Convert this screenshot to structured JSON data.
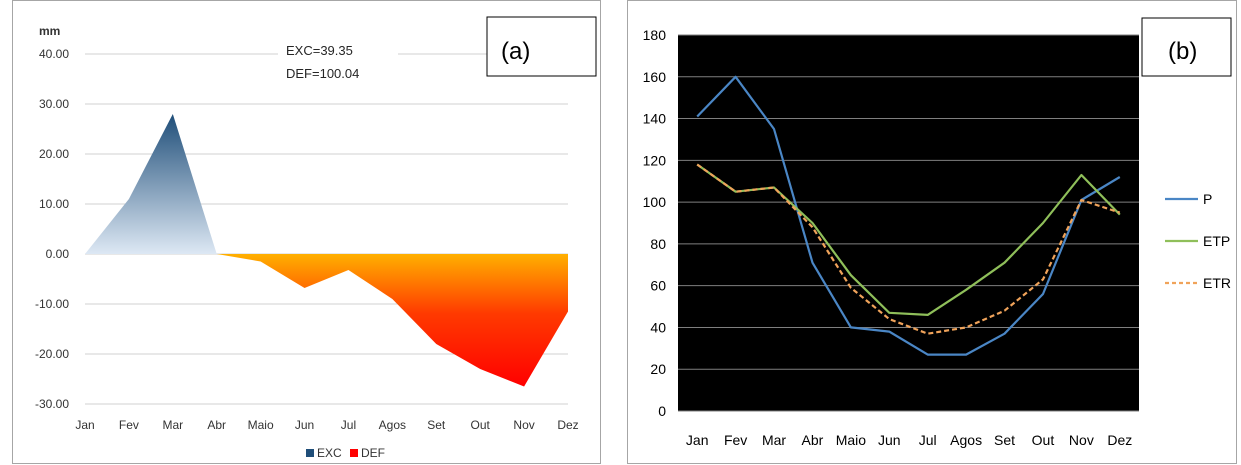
{
  "panel_labels": [
    "(a)",
    "(b)"
  ],
  "chart_data": [
    {
      "type": "area",
      "ylabel": "mm",
      "ylim": [
        -30,
        40
      ],
      "yticks": [
        "40.00",
        "30.00",
        "20.00",
        "10.00",
        "0.00",
        "-10.00",
        "-20.00",
        "-30.00"
      ],
      "categories": [
        "Jan",
        "Fev",
        "Mar",
        "Abr",
        "Maio",
        "Jun",
        "Jul",
        "Agos",
        "Set",
        "Out",
        "Nov",
        "Dez"
      ],
      "series": [
        {
          "name": "EXC",
          "values": [
            0,
            11,
            28,
            0,
            0,
            0,
            0,
            0,
            0,
            0,
            0,
            0
          ],
          "color": "#1f4e79"
        },
        {
          "name": "DEF",
          "values": [
            0,
            0,
            0,
            0,
            -1.5,
            -6.8,
            -3.2,
            -9,
            -18,
            -23,
            -26.5,
            -11.5
          ],
          "color": "#ff0000"
        }
      ],
      "annotations": [
        "EXC=39.35",
        "DEF=100.04"
      ],
      "grid": true,
      "legend": "bottom"
    },
    {
      "type": "line",
      "ylim": [
        0,
        180
      ],
      "yticks": [
        "180",
        "160",
        "140",
        "120",
        "100",
        "80",
        "60",
        "40",
        "20",
        "0"
      ],
      "categories": [
        "Jan",
        "Fev",
        "Mar",
        "Abr",
        "Maio",
        "Jun",
        "Jul",
        "Agos",
        "Set",
        "Out",
        "Nov",
        "Dez"
      ],
      "series": [
        {
          "name": "P",
          "values": [
            141,
            160,
            135,
            71,
            40,
            38,
            27,
            27,
            37,
            56,
            101,
            112
          ],
          "color": "#4a86c5",
          "dash": false
        },
        {
          "name": "ETP",
          "values": [
            118,
            105,
            107,
            90,
            65,
            47,
            46,
            58,
            71,
            90,
            113,
            94
          ],
          "color": "#8fbf5a",
          "dash": false
        },
        {
          "name": "ETR",
          "values": [
            118,
            105,
            107,
            88,
            59,
            44,
            37,
            40,
            48,
            63,
            101,
            95
          ],
          "color": "#f0a35a",
          "dash": true
        }
      ],
      "background": "#000000",
      "grid": true,
      "legend": "right"
    }
  ]
}
